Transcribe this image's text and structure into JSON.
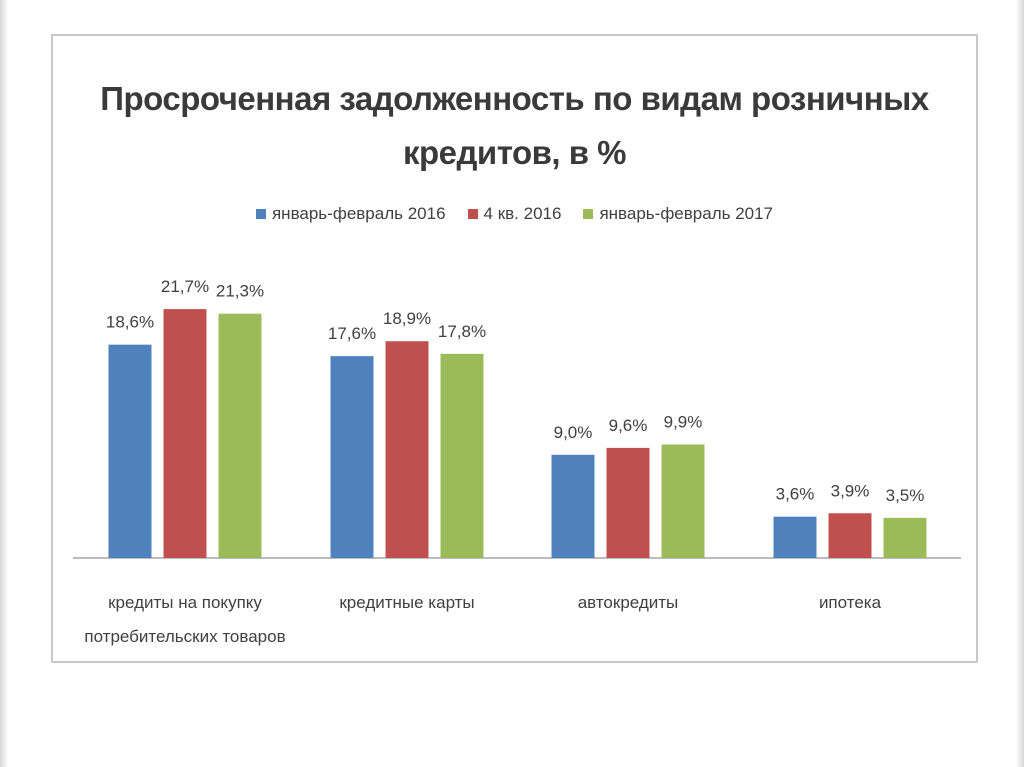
{
  "chart_data": {
    "type": "bar",
    "title_lines": [
      "Просроченная задолженность по видам розничных",
      "кредитов, в %"
    ],
    "categories": [
      [
        "кредиты на покупку",
        "потребительских товаров"
      ],
      [
        "кредитные карты"
      ],
      [
        "автокредиты"
      ],
      [
        "ипотека"
      ]
    ],
    "series": [
      {
        "name": "январь-февраль 2016",
        "color": "#4f81bd",
        "values": [
          18.6,
          17.6,
          9.0,
          3.6
        ],
        "labels": [
          "18,6%",
          "17,6%",
          "9,0%",
          "3,6%"
        ]
      },
      {
        "name": "4 кв. 2016",
        "color": "#c0504d",
        "values": [
          21.7,
          18.9,
          9.6,
          3.9
        ],
        "labels": [
          "21,7%",
          "18,9%",
          "9,6%",
          "3,9%"
        ]
      },
      {
        "name": "январь-февраль 2017",
        "color": "#9bbb59",
        "values": [
          21.3,
          17.8,
          9.9,
          3.5
        ],
        "labels": [
          "21,3%",
          "17,8%",
          "9,9%",
          "3,5%"
        ]
      }
    ],
    "ylim": [
      0,
      25
    ],
    "grid": false,
    "legend_position": "top"
  }
}
